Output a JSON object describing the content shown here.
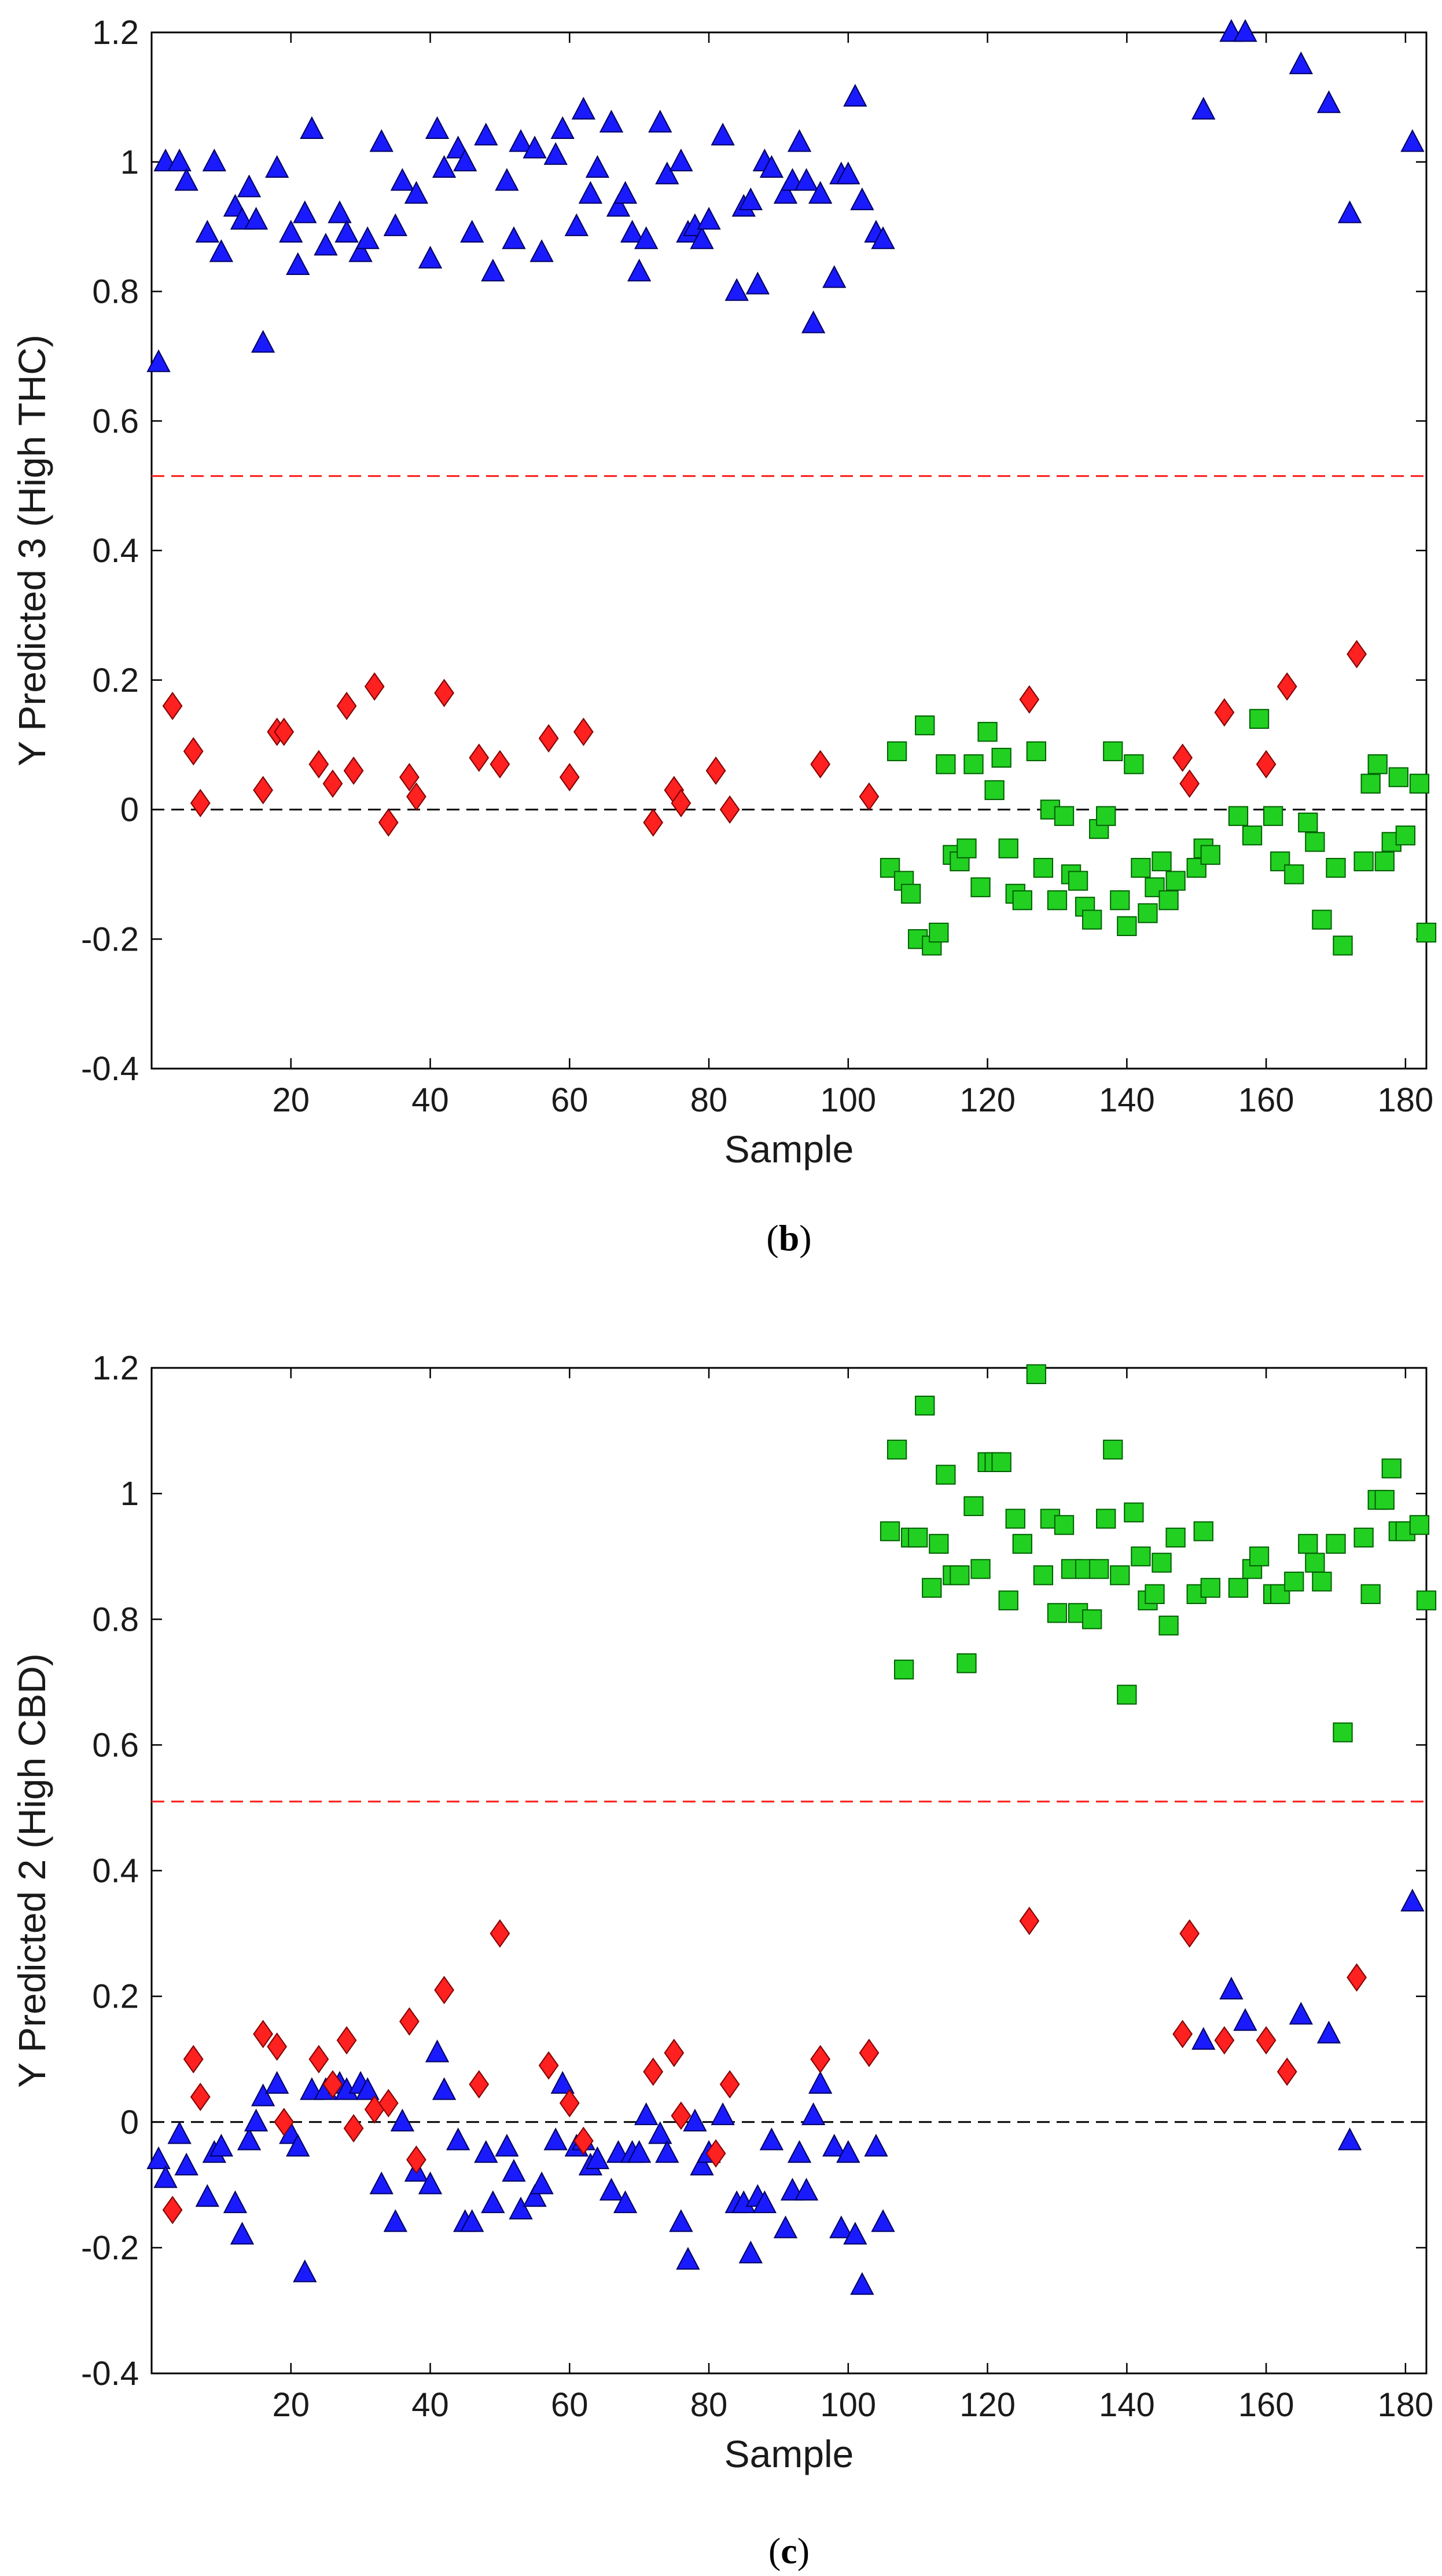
{
  "chart_data": [
    {
      "type": "scatter",
      "panel_label": "b",
      "xlabel": "Sample",
      "ylabel": "Y Predicted 3 (High THC)",
      "xlim": [
        0,
        183
      ],
      "ylim": [
        -0.4,
        1.2
      ],
      "xticks": [
        20,
        40,
        60,
        80,
        100,
        120,
        140,
        160,
        180
      ],
      "yticks": [
        -0.4,
        -0.2,
        0,
        0.2,
        0.4,
        0.6,
        0.8,
        1,
        1.2
      ],
      "xtick_labels": [
        "20",
        "40",
        "60",
        "80",
        "100",
        "120",
        "140",
        "160",
        "180"
      ],
      "ytick_labels": [
        "-0.4",
        "-0.2",
        "0",
        "0.2",
        "0.4",
        "0.6",
        "0.8",
        "1",
        "1.2"
      ],
      "threshold": 0.515,
      "zero_line": 0,
      "series": [
        {
          "marker": "triangle",
          "color": "#1a1aff",
          "x": [
            1,
            2,
            4,
            5,
            8,
            9,
            10,
            12,
            13,
            14,
            15,
            16,
            18,
            20,
            21,
            22,
            23,
            25,
            27,
            28,
            30,
            31,
            33,
            35,
            36,
            38,
            40,
            41,
            42,
            44,
            45,
            46,
            48,
            49,
            51,
            52,
            53,
            55,
            56,
            58,
            59,
            61,
            62,
            63,
            64,
            66,
            67,
            68,
            69,
            70,
            71,
            73,
            74,
            76,
            77,
            78,
            79,
            80,
            82,
            84,
            85,
            86,
            87,
            88,
            89,
            91,
            92,
            93,
            94,
            95,
            96,
            98,
            99,
            100,
            101,
            102,
            104,
            105,
            151,
            155,
            157,
            165,
            169,
            172,
            181
          ],
          "y": [
            0.69,
            1.0,
            1.0,
            0.97,
            0.89,
            1.0,
            0.86,
            0.93,
            0.91,
            0.96,
            0.91,
            0.72,
            0.99,
            0.89,
            0.84,
            0.92,
            1.05,
            0.87,
            0.92,
            0.89,
            0.86,
            0.88,
            1.03,
            0.9,
            0.97,
            0.95,
            0.85,
            1.05,
            0.99,
            1.02,
            1.0,
            0.89,
            1.04,
            0.83,
            0.97,
            0.88,
            1.03,
            1.02,
            0.86,
            1.01,
            1.05,
            0.9,
            1.08,
            0.95,
            0.99,
            1.06,
            0.93,
            0.95,
            0.89,
            0.83,
            0.88,
            1.06,
            0.98,
            1.0,
            0.89,
            0.9,
            0.88,
            0.91,
            1.04,
            0.8,
            0.93,
            0.94,
            0.81,
            1.0,
            0.99,
            0.95,
            0.97,
            1.03,
            0.97,
            0.75,
            0.95,
            0.82,
            0.98,
            0.98,
            1.1,
            0.94,
            0.89,
            0.88,
            1.08,
            1.2,
            1.2,
            1.15,
            1.09,
            0.92,
            1.03
          ]
        },
        {
          "marker": "diamond",
          "color": "#ff2020",
          "x": [
            3,
            6,
            7,
            16,
            18,
            19,
            24,
            26,
            28,
            29,
            32,
            34,
            37,
            38,
            42,
            47,
            50,
            57,
            60,
            62,
            72,
            75,
            76,
            81,
            83,
            96,
            103,
            126,
            148,
            149,
            154,
            160,
            163,
            173
          ],
          "y": [
            0.16,
            0.09,
            0.01,
            0.03,
            0.12,
            0.12,
            0.07,
            0.04,
            0.16,
            0.06,
            0.19,
            -0.02,
            0.05,
            0.02,
            0.18,
            0.08,
            0.07,
            0.11,
            0.05,
            0.12,
            -0.02,
            0.03,
            0.01,
            0.06,
            0.0,
            0.07,
            0.02,
            0.17,
            0.08,
            0.04,
            0.15,
            0.07,
            0.19,
            0.24
          ]
        },
        {
          "marker": "square",
          "color": "#22d022",
          "x": [
            106,
            107,
            108,
            109,
            110,
            111,
            112,
            113,
            114,
            115,
            116,
            117,
            118,
            119,
            120,
            121,
            122,
            123,
            124,
            125,
            127,
            128,
            129,
            130,
            131,
            132,
            133,
            134,
            135,
            136,
            137,
            138,
            139,
            140,
            141,
            142,
            143,
            144,
            145,
            146,
            147,
            150,
            151,
            152,
            156,
            158,
            159,
            161,
            162,
            164,
            166,
            167,
            168,
            170,
            171,
            174,
            175,
            176,
            177,
            178,
            179,
            180,
            182,
            183
          ],
          "y": [
            -0.09,
            0.09,
            -0.11,
            -0.13,
            -0.2,
            0.13,
            -0.21,
            -0.19,
            0.07,
            -0.07,
            -0.08,
            -0.06,
            0.07,
            -0.12,
            0.12,
            0.03,
            0.08,
            -0.06,
            -0.13,
            -0.14,
            0.09,
            -0.09,
            0.0,
            -0.14,
            -0.01,
            -0.1,
            -0.11,
            -0.15,
            -0.17,
            -0.03,
            -0.01,
            0.09,
            -0.14,
            -0.18,
            0.07,
            -0.09,
            -0.16,
            -0.12,
            -0.08,
            -0.14,
            -0.11,
            -0.09,
            -0.06,
            -0.07,
            -0.01,
            -0.04,
            0.14,
            -0.01,
            -0.08,
            -0.1,
            -0.02,
            -0.05,
            -0.17,
            -0.09,
            -0.21,
            -0.08,
            0.04,
            0.07,
            -0.08,
            -0.05,
            0.05,
            -0.04,
            0.04,
            -0.19
          ]
        }
      ]
    },
    {
      "type": "scatter",
      "panel_label": "c",
      "xlabel": "Sample",
      "ylabel": "Y Predicted 2 (High CBD)",
      "xlim": [
        0,
        183
      ],
      "ylim": [
        -0.4,
        1.2
      ],
      "xticks": [
        20,
        40,
        60,
        80,
        100,
        120,
        140,
        160,
        180
      ],
      "yticks": [
        -0.4,
        -0.2,
        0,
        0.2,
        0.4,
        0.6,
        0.8,
        1,
        1.2
      ],
      "xtick_labels": [
        "20",
        "40",
        "60",
        "80",
        "100",
        "120",
        "140",
        "160",
        "180"
      ],
      "ytick_labels": [
        "-0.4",
        "-0.2",
        "0",
        "0.2",
        "0.4",
        "0.6",
        "0.8",
        "1",
        "1.2"
      ],
      "threshold": 0.51,
      "zero_line": 0,
      "series": [
        {
          "marker": "triangle",
          "color": "#1a1aff",
          "x": [
            1,
            2,
            4,
            5,
            8,
            9,
            10,
            12,
            13,
            14,
            15,
            16,
            18,
            20,
            21,
            22,
            23,
            25,
            27,
            28,
            30,
            31,
            33,
            35,
            36,
            38,
            40,
            41,
            42,
            44,
            45,
            46,
            48,
            49,
            51,
            52,
            53,
            55,
            56,
            58,
            59,
            61,
            62,
            63,
            64,
            66,
            67,
            68,
            69,
            70,
            71,
            73,
            74,
            76,
            77,
            78,
            79,
            80,
            82,
            84,
            85,
            86,
            87,
            88,
            89,
            91,
            92,
            93,
            94,
            95,
            96,
            98,
            99,
            100,
            101,
            102,
            104,
            105,
            151,
            155,
            157,
            165,
            169,
            172,
            181
          ],
          "y": [
            -0.06,
            -0.09,
            -0.02,
            -0.07,
            -0.12,
            -0.05,
            -0.04,
            -0.13,
            -0.18,
            -0.03,
            0.0,
            0.04,
            0.06,
            -0.02,
            -0.04,
            -0.24,
            0.05,
            0.05,
            0.06,
            0.05,
            0.06,
            0.05,
            -0.1,
            -0.16,
            0.0,
            -0.08,
            -0.1,
            0.11,
            0.05,
            -0.03,
            -0.16,
            -0.16,
            -0.05,
            -0.13,
            -0.04,
            -0.08,
            -0.14,
            -0.12,
            -0.1,
            -0.03,
            0.06,
            -0.04,
            -0.03,
            -0.07,
            -0.06,
            -0.11,
            -0.05,
            -0.13,
            -0.05,
            -0.05,
            0.01,
            -0.02,
            -0.05,
            -0.16,
            -0.22,
            0.0,
            -0.07,
            -0.05,
            0.01,
            -0.13,
            -0.13,
            -0.21,
            -0.12,
            -0.13,
            -0.03,
            -0.17,
            -0.11,
            -0.05,
            -0.11,
            0.01,
            0.06,
            -0.04,
            -0.17,
            -0.05,
            -0.18,
            -0.26,
            -0.04,
            -0.16,
            0.13,
            0.21,
            0.16,
            0.17,
            0.14,
            -0.03,
            0.35
          ]
        },
        {
          "marker": "diamond",
          "color": "#ff2020",
          "x": [
            3,
            6,
            7,
            16,
            18,
            19,
            24,
            26,
            28,
            29,
            32,
            34,
            37,
            38,
            42,
            47,
            50,
            57,
            60,
            62,
            72,
            75,
            76,
            81,
            83,
            96,
            103,
            126,
            148,
            149,
            154,
            160,
            163,
            173
          ],
          "y": [
            -0.14,
            0.1,
            0.04,
            0.14,
            0.12,
            0.0,
            0.1,
            0.06,
            0.13,
            -0.01,
            0.02,
            0.03,
            0.16,
            -0.06,
            0.21,
            0.06,
            0.3,
            0.09,
            0.03,
            -0.03,
            0.08,
            0.11,
            0.01,
            -0.05,
            0.06,
            0.1,
            0.11,
            0.32,
            0.14,
            0.3,
            0.13,
            0.13,
            0.08,
            0.23
          ]
        },
        {
          "marker": "square",
          "color": "#22d022",
          "x": [
            106,
            107,
            108,
            109,
            110,
            111,
            112,
            113,
            114,
            115,
            116,
            117,
            118,
            119,
            120,
            121,
            122,
            123,
            124,
            125,
            127,
            128,
            129,
            130,
            131,
            132,
            133,
            134,
            135,
            136,
            137,
            138,
            139,
            140,
            141,
            142,
            143,
            144,
            145,
            146,
            147,
            150,
            151,
            152,
            156,
            158,
            159,
            161,
            162,
            164,
            166,
            167,
            168,
            170,
            171,
            174,
            175,
            176,
            177,
            178,
            179,
            180,
            182,
            183
          ],
          "y": [
            0.94,
            1.07,
            0.72,
            0.93,
            0.93,
            1.14,
            0.85,
            0.92,
            1.03,
            0.87,
            0.87,
            0.73,
            0.98,
            0.88,
            1.05,
            1.05,
            1.05,
            0.83,
            0.96,
            0.92,
            1.19,
            0.87,
            0.96,
            0.81,
            0.95,
            0.88,
            0.81,
            0.88,
            0.8,
            0.88,
            0.96,
            1.07,
            0.87,
            0.68,
            0.97,
            0.9,
            0.83,
            0.84,
            0.89,
            0.79,
            0.93,
            0.84,
            0.94,
            0.85,
            0.85,
            0.88,
            0.9,
            0.84,
            0.84,
            0.86,
            0.92,
            0.89,
            0.86,
            0.92,
            0.62,
            0.93,
            0.84,
            0.99,
            0.99,
            1.04,
            0.94,
            0.94,
            0.95,
            0.83
          ]
        }
      ]
    }
  ]
}
